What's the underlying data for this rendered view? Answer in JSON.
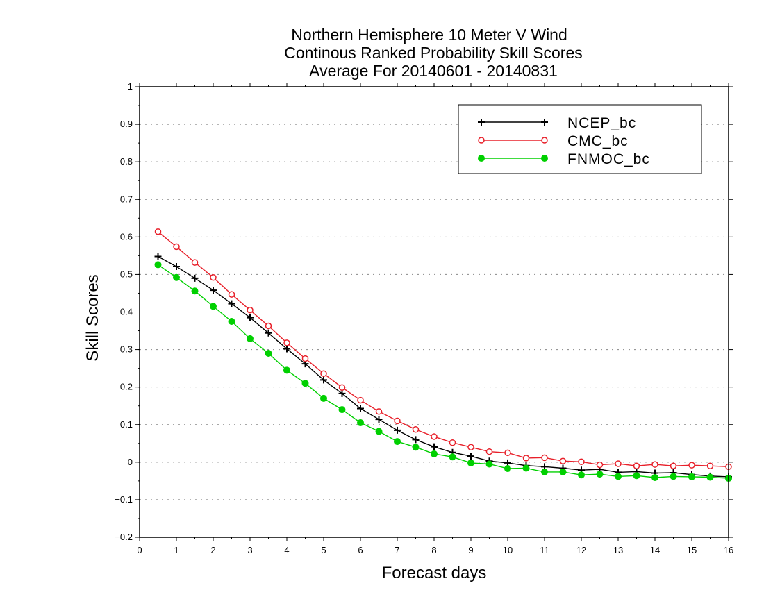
{
  "chart_data": {
    "type": "line",
    "title": [
      "Northern Hemisphere 10 Meter V Wind",
      "Continous Ranked Probability Skill Scores",
      "Average For 20140601 - 20140831"
    ],
    "xlabel": "Forecast days",
    "ylabel": "Skill Scores",
    "xlim": [
      0,
      16
    ],
    "ylim": [
      -0.2,
      1
    ],
    "xticks": [
      "0",
      "1",
      "2",
      "3",
      "4",
      "5",
      "6",
      "7",
      "8",
      "9",
      "10",
      "11",
      "12",
      "13",
      "14",
      "15",
      "16"
    ],
    "yticks": [
      "−0.2",
      "−0.1",
      "0",
      "0.1",
      "0.2",
      "0.3",
      "0.4",
      "0.5",
      "0.6",
      "0.7",
      "0.8",
      "0.9",
      "1"
    ],
    "yticks_values": [
      -0.2,
      -0.1,
      0,
      0.1,
      0.2,
      0.3,
      0.4,
      0.5,
      0.6,
      0.7,
      0.8,
      0.9,
      1
    ],
    "grid": true,
    "legend_position": "top-right",
    "x": [
      0.5,
      1,
      1.5,
      2,
      2.5,
      3,
      3.5,
      4,
      4.5,
      5,
      5.5,
      6,
      6.5,
      7,
      7.5,
      8,
      8.5,
      9,
      9.5,
      10,
      10.5,
      11,
      11.5,
      12,
      12.5,
      13,
      13.5,
      14,
      14.5,
      15,
      15.5,
      16
    ],
    "series": [
      {
        "name": "NCEP_bc",
        "color": "#000000",
        "marker": "plus",
        "values": [
          0.548,
          0.521,
          0.49,
          0.458,
          0.422,
          0.385,
          0.344,
          0.302,
          0.262,
          0.219,
          0.183,
          0.143,
          0.114,
          0.085,
          0.06,
          0.041,
          0.026,
          0.016,
          0.003,
          -0.002,
          -0.009,
          -0.012,
          -0.016,
          -0.021,
          -0.019,
          -0.027,
          -0.025,
          -0.029,
          -0.028,
          -0.033,
          -0.037,
          -0.039
        ]
      },
      {
        "name": "CMC_bc",
        "color": "#e8202a",
        "marker": "open-circle",
        "values": [
          0.614,
          0.574,
          0.532,
          0.492,
          0.447,
          0.405,
          0.363,
          0.318,
          0.276,
          0.236,
          0.199,
          0.165,
          0.135,
          0.11,
          0.087,
          0.068,
          0.052,
          0.04,
          0.028,
          0.025,
          0.011,
          0.012,
          0.003,
          0.001,
          -0.007,
          -0.004,
          -0.01,
          -0.006,
          -0.01,
          -0.008,
          -0.01,
          -0.012
        ]
      },
      {
        "name": "FNMOC_bc",
        "color": "#00d000",
        "marker": "filled-circle",
        "values": [
          0.526,
          0.492,
          0.456,
          0.415,
          0.375,
          0.329,
          0.29,
          0.245,
          0.21,
          0.17,
          0.14,
          0.105,
          0.082,
          0.055,
          0.04,
          0.022,
          0.014,
          -0.002,
          -0.005,
          -0.017,
          -0.016,
          -0.026,
          -0.026,
          -0.034,
          -0.032,
          -0.038,
          -0.036,
          -0.041,
          -0.038,
          -0.039,
          -0.04,
          -0.043
        ]
      }
    ]
  }
}
